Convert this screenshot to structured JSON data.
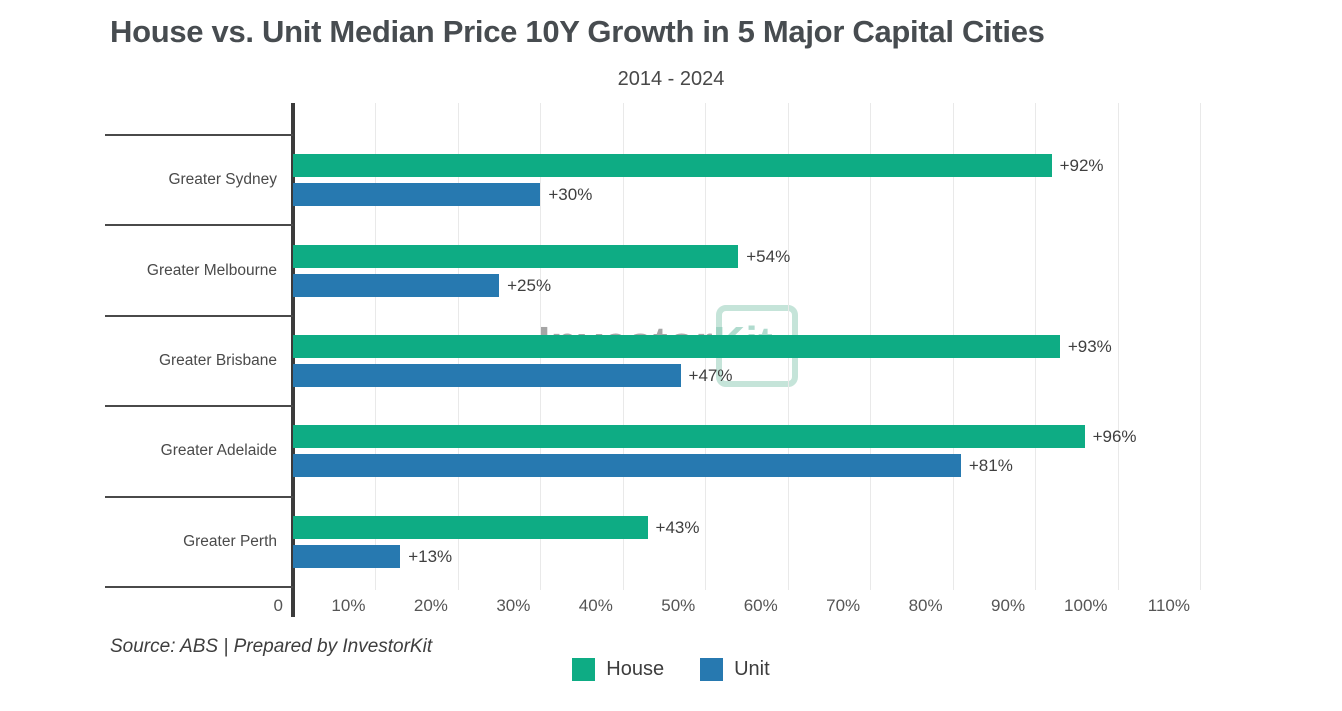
{
  "title": "House vs. Unit Median Price 10Y Growth in 5 Major Capital Cities",
  "subtitle": "2014 - 2024",
  "source": "Source: ABS | Prepared by InvestorKit",
  "watermark": {
    "part1": "Investor",
    "part2": "Kit"
  },
  "colors": {
    "house": "#0eac84",
    "unit": "#2779b0",
    "axis": "#3b3b3b",
    "gridline": "#e9e9e9",
    "text": "#4a4a4a"
  },
  "legend": [
    {
      "label": "House",
      "color": "#0eac84"
    },
    {
      "label": "Unit",
      "color": "#2779b0"
    }
  ],
  "chart_data": {
    "type": "bar",
    "orientation": "horizontal",
    "title": "House vs. Unit Median Price 10Y Growth in 5 Major Capital Cities",
    "subtitle": "2014 - 2024",
    "categories": [
      "Greater Sydney",
      "Greater Melbourne",
      "Greater Brisbane",
      "Greater Adelaide",
      "Greater Perth"
    ],
    "series": [
      {
        "name": "House",
        "color": "#0eac84",
        "values": [
          92,
          54,
          93,
          96,
          43
        ],
        "labels": [
          "+92%",
          "+54%",
          "+93%",
          "+96%",
          "+43%"
        ]
      },
      {
        "name": "Unit",
        "color": "#2779b0",
        "values": [
          30,
          25,
          47,
          81,
          13
        ],
        "labels": [
          "+30%",
          "+25%",
          "+47%",
          "+81%",
          "+13%"
        ]
      }
    ],
    "xlim": [
      0,
      110
    ],
    "xticks": [
      "0",
      "10%",
      "20%",
      "30%",
      "40%",
      "50%",
      "60%",
      "70%",
      "80%",
      "90%",
      "100%",
      "110%"
    ],
    "grid": true,
    "legend_position": "bottom"
  }
}
